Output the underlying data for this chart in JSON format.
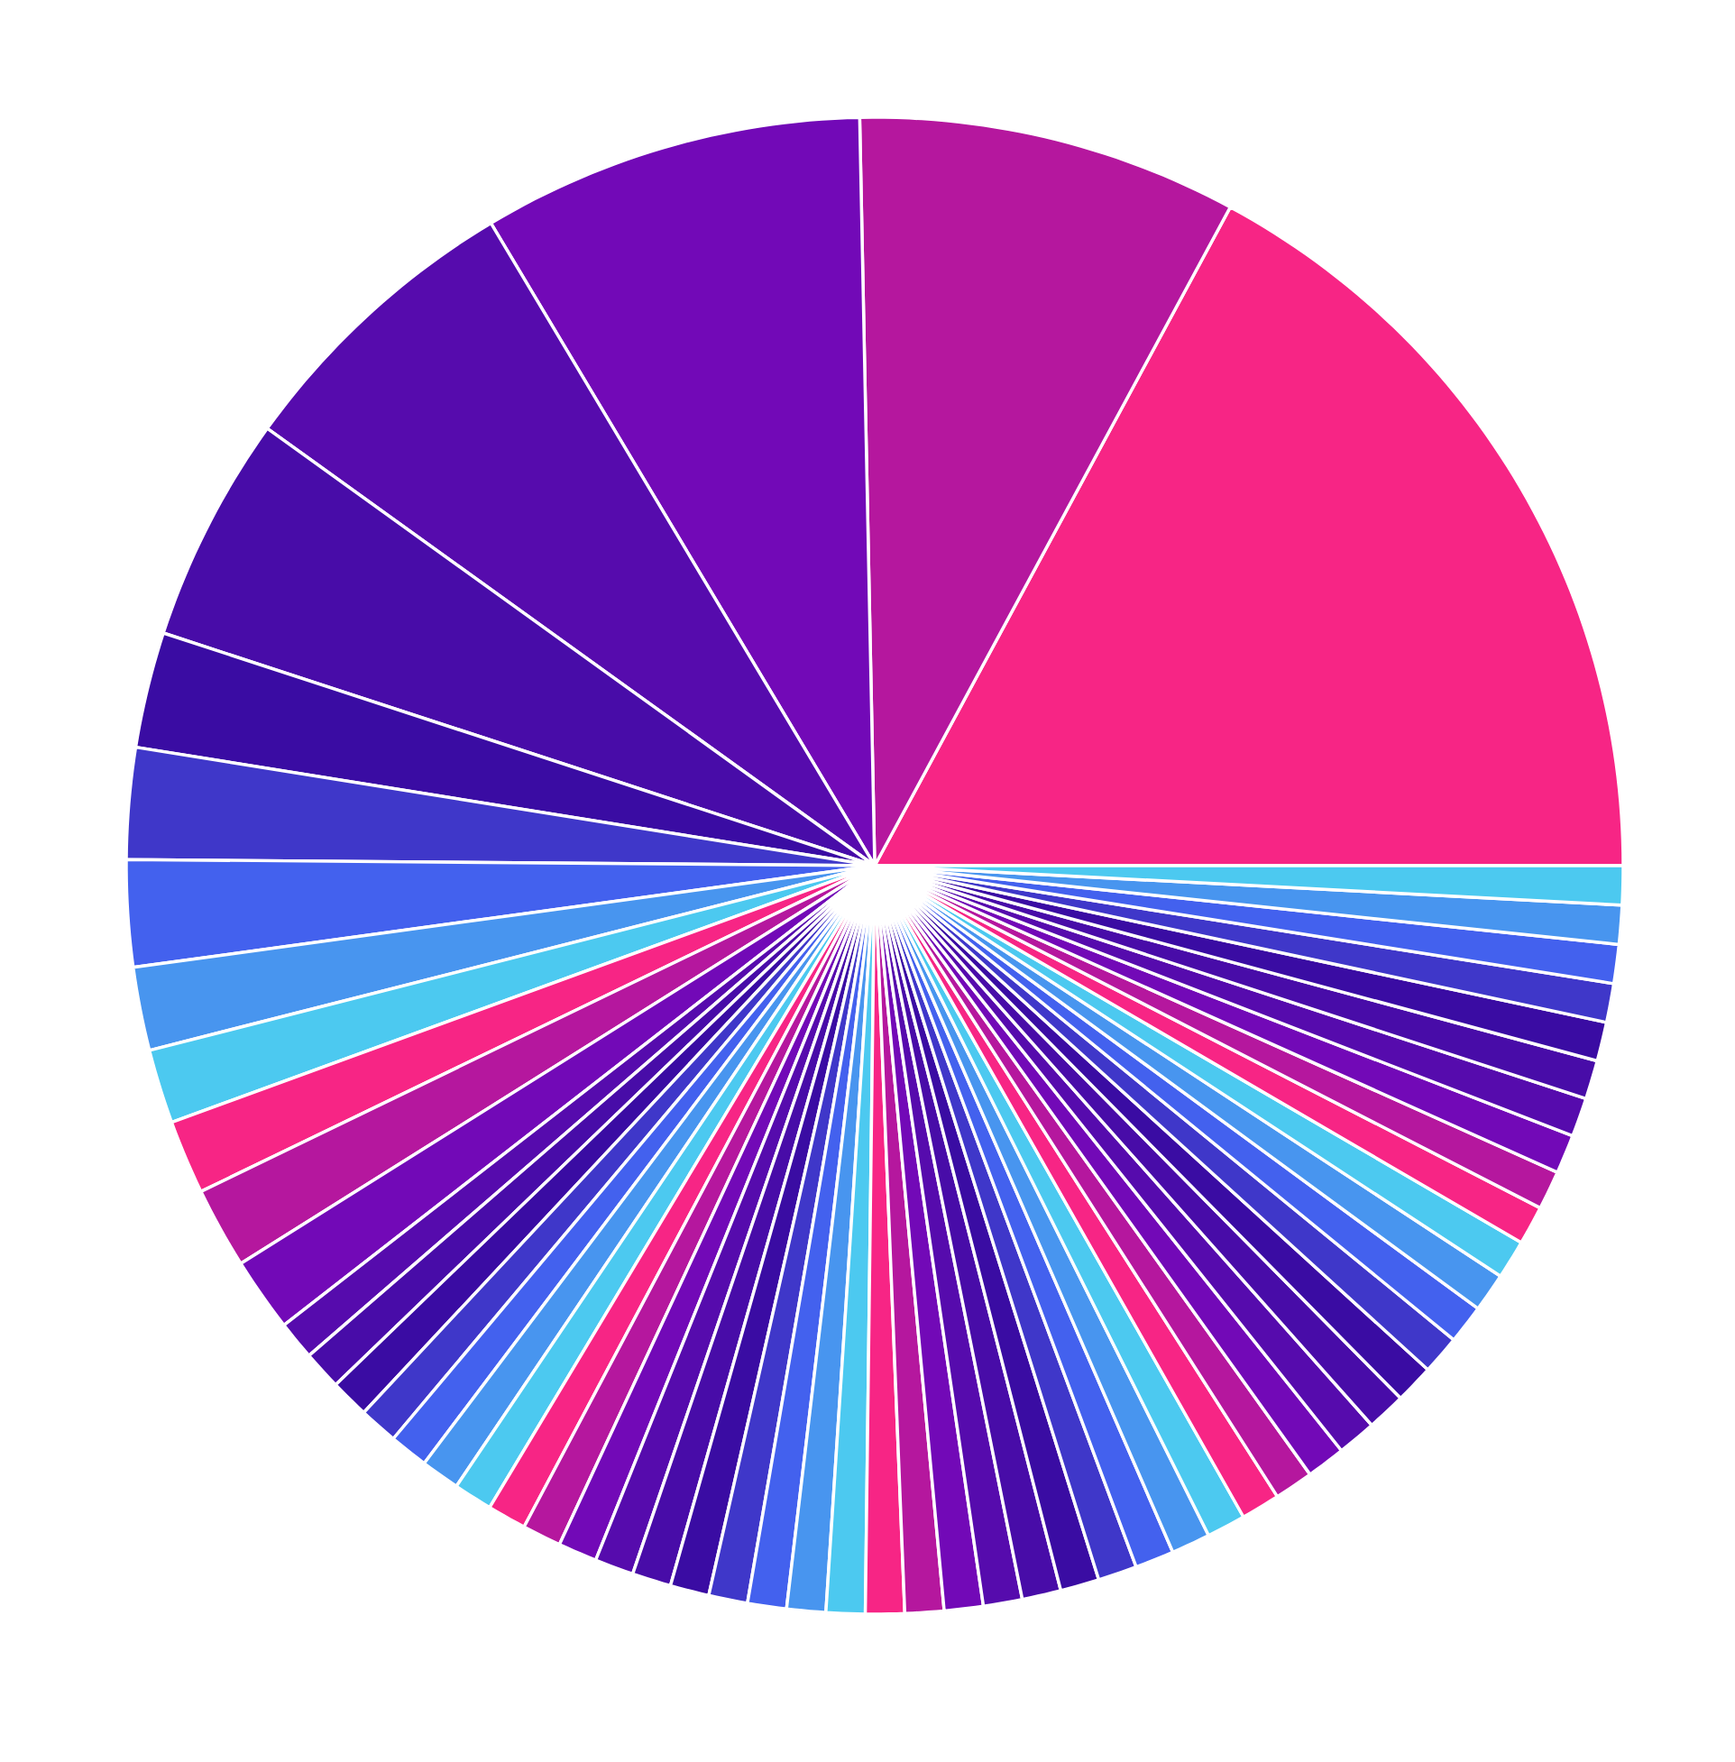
{
  "chart_data": {
    "type": "pie",
    "categories": [
      null,
      null,
      null,
      null,
      null,
      null,
      null,
      null,
      null,
      null,
      null,
      null,
      null,
      null,
      null,
      null,
      null,
      null,
      null,
      null,
      null,
      null,
      null,
      null,
      null,
      null,
      null,
      null,
      null,
      null,
      null,
      null,
      null,
      null,
      null,
      null,
      null,
      null,
      null,
      null,
      null,
      null,
      null,
      null,
      null,
      null,
      null,
      null,
      null,
      null,
      null,
      null,
      null,
      null,
      null,
      null,
      null,
      null,
      null,
      null
    ],
    "values": [
      17.12,
      8.2,
      8.25,
      6.5,
      4.9,
      2.5,
      2.4,
      2.3,
      1.8,
      1.6,
      1.6,
      1.75,
      1.6,
      0.84,
      0.84,
      0.84,
      0.84,
      0.84,
      0.84,
      0.84,
      0.84,
      0.84,
      0.84,
      0.84,
      0.84,
      0.84,
      0.84,
      0.84,
      0.84,
      0.84,
      0.84,
      0.84,
      0.84,
      0.84,
      0.84,
      0.84,
      0.84,
      0.84,
      0.84,
      0.84,
      0.84,
      0.84,
      0.84,
      0.84,
      0.84,
      0.84,
      0.84,
      0.84,
      0.84,
      0.84,
      0.84,
      0.84,
      0.84,
      0.84,
      0.84,
      0.84,
      0.84,
      0.84,
      0.84,
      0.84
    ],
    "colors": [
      "#f72585",
      "#b5179e",
      "#7209b7",
      "#560bad",
      "#480ca8",
      "#3a0ca3",
      "#3f37c9",
      "#4361ee",
      "#4895ef",
      "#4cc9f0",
      "#f72585",
      "#b5179e",
      "#7209b7",
      "#560bad",
      "#480ca8",
      "#3a0ca3",
      "#3f37c9",
      "#4361ee",
      "#4895ef",
      "#4cc9f0",
      "#f72585",
      "#b5179e",
      "#7209b7",
      "#560bad",
      "#480ca8",
      "#3a0ca3",
      "#3f37c9",
      "#4361ee",
      "#4895ef",
      "#4cc9f0",
      "#f72585",
      "#b5179e",
      "#7209b7",
      "#560bad",
      "#480ca8",
      "#3a0ca3",
      "#3f37c9",
      "#4361ee",
      "#4895ef",
      "#4cc9f0",
      "#f72585",
      "#b5179e",
      "#7209b7",
      "#560bad",
      "#480ca8",
      "#3a0ca3",
      "#3f37c9",
      "#4361ee",
      "#4895ef",
      "#4cc9f0",
      "#f72585",
      "#b5179e",
      "#7209b7",
      "#560bad",
      "#480ca8",
      "#3a0ca3",
      "#3f37c9",
      "#4361ee",
      "#4895ef",
      "#4cc9f0"
    ]
  }
}
